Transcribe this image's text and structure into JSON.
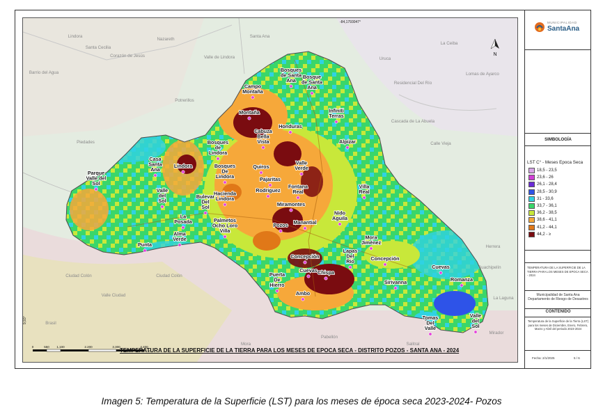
{
  "map": {
    "title": "TEMPERATURA DE LA SUPERFICIE DE LA TIERRA PARA LOS MESES DE EPOCA SECA - DISTRITO POZOS - SANTA ANA - 2024",
    "coord_top": "-84,1793047°",
    "coord_left": "9,93°",
    "north_label": "N",
    "scale": [
      "0",
      "550",
      "1.100",
      "2.200",
      "3.300",
      "4.400"
    ],
    "scale_unit": "m",
    "places": [
      "Bosques de Santa Ana",
      "Bosque de Santa Ana",
      "Campo Montaña",
      "Montaña",
      "Honduras",
      "Infiniti Terras",
      "Cabuza Bella Vista",
      "Alpízar",
      "Bosques de Lindora",
      "Casa Santa Ana",
      "Lindora",
      "Quiros",
      "Valle Verde",
      "Parque Valle del Sol",
      "Bosques De Lindora",
      "Pajaritas",
      "Rodríguez",
      "Fontana Real",
      "Villa Real",
      "Hacienda Lindora",
      "Miramontes",
      "Valle del Sol",
      "Bulevar Del Sol",
      "La Posada",
      "Palmetos Ocho Loro Villa",
      "Pozos",
      "Manantial",
      "Nido Aguila",
      "Alma Verde",
      "Punta",
      "Mora Jiménez",
      "Concepción",
      "Concepción ",
      "Lapas Del Río",
      "Cuevas",
      "Chispa",
      "Cuevas ",
      "Puerta De Hierro",
      "Ambo",
      "Sirivanna",
      "Romanza",
      "Tomas Del Valle",
      "Valle del Sol "
    ],
    "background_places": [
      "Lindora",
      "Nazareth",
      "Santa Cecilia",
      "Corazón de Jesús",
      "Valle de Lindora",
      "Potrerillos",
      "Santa Ana",
      "La Ceiba",
      "Uruca",
      "Barrio del Agua",
      "Piedades",
      "Residencial Del Río",
      "Cascada de La Abuela",
      "Calle Vieja",
      "Lomas de Ayarco",
      "Ciudad Colón",
      "Ciudad Colón",
      "Valle Ciudad",
      "Brasil",
      "Mora",
      "Guachipelín",
      "Herrera",
      "La Laguna",
      "Mirador",
      "Salitral",
      "Pabellón"
    ]
  },
  "sidebar": {
    "logo_sub": "MUNICIPALIDAD",
    "logo_main": "SantaAna",
    "symbology": "SIMBOLOGÍA",
    "legend_title": "LST C° - Meses Epoca Seca",
    "legend": [
      {
        "label": "18,5 - 23,5",
        "color": "#d8a6e8"
      },
      {
        "label": "23,6 - 26",
        "color": "#d03fd6"
      },
      {
        "label": "26,1 - 28,4",
        "color": "#6a2bd6"
      },
      {
        "label": "28,5 - 30,9",
        "color": "#2e53e8"
      },
      {
        "label": "31 - 33,6",
        "color": "#30d2e2"
      },
      {
        "label": "33,7 - 36,1",
        "color": "#3ad66a"
      },
      {
        "label": "36,2 - 38,5",
        "color": "#c8e83a"
      },
      {
        "label": "38,6 - 41,1",
        "color": "#f6a83a"
      },
      {
        "label": "41,2 - 44,1",
        "color": "#e07818"
      },
      {
        "label": "44,2 - ≥",
        "color": "#7a0c10"
      }
    ],
    "project_title": "TEMPERATURA DE LA SUPERFICIE DE LA TIERRA PARA LOS MESES DE EPOCA SECA - 2024",
    "municipality": "Municipalidad de Santa Ana",
    "department": "Departamento de Riesgo de Desastres",
    "contents_title": "CONTENIDO",
    "contents_text": "Temperatura de la Superficie de la Tierra (LST) para los meses de Diciembre, Enero, Febrero, Marzo y Abril del periodo 2023-2024",
    "date": "Fecha: 2/1/2025",
    "page": "5 / 6"
  },
  "caption": "Imagen 5: Temperatura de la Superficie (LST) para los meses de época seca 2023-2024- Pozos"
}
